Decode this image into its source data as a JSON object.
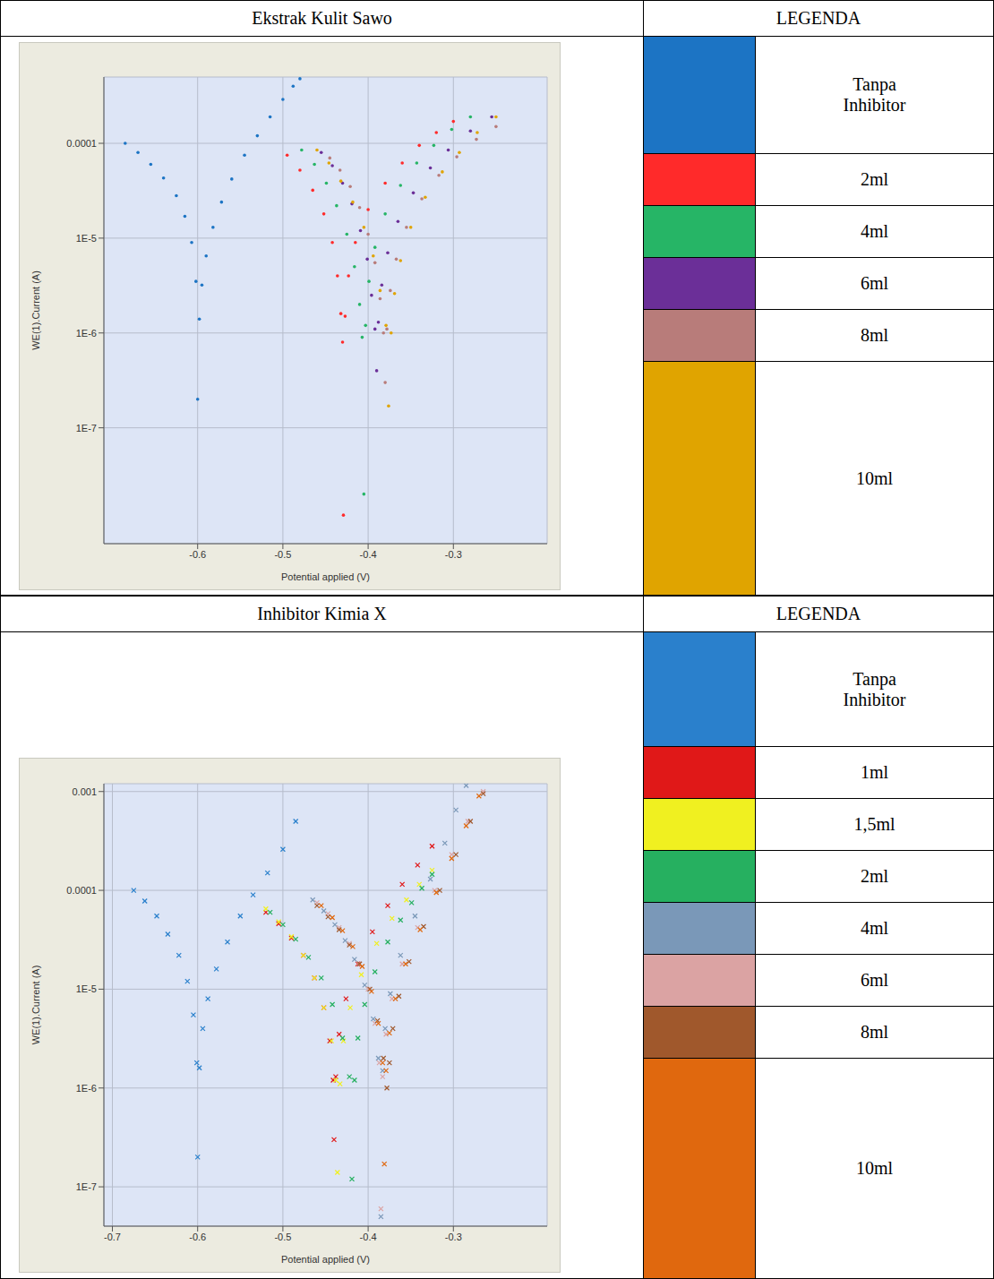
{
  "chart_data": [
    {
      "type": "scatter",
      "title": "Ekstrak Kulit Sawo",
      "legend_title": "LEGENDA",
      "x_label": "Potential applied (V)",
      "y_label": "WE(1).Current (A)",
      "log": "y",
      "grid": true,
      "legend": "right",
      "marker": "circle",
      "xlim": [
        -0.71,
        -0.19
      ],
      "xticks": [
        -0.6,
        -0.5,
        -0.4,
        -0.3
      ],
      "ylim": [
        6e-09,
        0.0005
      ],
      "yticks": [
        {
          "value": 1e-07,
          "label": "1E-7"
        },
        {
          "value": 1e-06,
          "label": "1E-6"
        },
        {
          "value": 1e-05,
          "label": "1E-5"
        },
        {
          "value": 0.0001,
          "label": "0.0001"
        }
      ],
      "series": [
        {
          "name": "Tanpa Inhibitor",
          "color": "#1c74c4",
          "x": [
            -0.685,
            -0.67,
            -0.655,
            -0.64,
            -0.625,
            -0.615,
            -0.607,
            -0.602,
            -0.6,
            -0.598,
            -0.595,
            -0.59,
            -0.582,
            -0.572,
            -0.56,
            -0.545,
            -0.53,
            -0.515,
            -0.5,
            -0.488,
            -0.48
          ],
          "values": [
            0.0001,
            8e-05,
            6e-05,
            4.3e-05,
            2.8e-05,
            1.7e-05,
            9e-06,
            3.5e-06,
            2e-07,
            1.4e-06,
            3.2e-06,
            6.5e-06,
            1.3e-05,
            2.4e-05,
            4.2e-05,
            7.5e-05,
            0.00012,
            0.00019,
            0.00029,
            0.0004,
            0.00048
          ]
        },
        {
          "name": "2ml",
          "color": "#ff2a2a",
          "x": [
            -0.495,
            -0.48,
            -0.465,
            -0.452,
            -0.442,
            -0.436,
            -0.432,
            -0.43,
            -0.429,
            -0.427,
            -0.423,
            -0.415,
            -0.4,
            -0.38,
            -0.36,
            -0.34,
            -0.32,
            -0.3
          ],
          "values": [
            7.5e-05,
            5.2e-05,
            3.2e-05,
            1.8e-05,
            9e-06,
            4e-06,
            1.6e-06,
            8e-07,
            1.2e-08,
            1.5e-06,
            4e-06,
            9e-06,
            2e-05,
            3.8e-05,
            6.2e-05,
            9.5e-05,
            0.00013,
            0.00017
          ]
        },
        {
          "name": "4ml",
          "color": "#26b566",
          "x": [
            -0.478,
            -0.463,
            -0.449,
            -0.437,
            -0.425,
            -0.416,
            -0.41,
            -0.407,
            -0.405,
            -0.403,
            -0.399,
            -0.392,
            -0.38,
            -0.362,
            -0.343,
            -0.323,
            -0.302,
            -0.28
          ],
          "values": [
            8.5e-05,
            6e-05,
            3.8e-05,
            2.2e-05,
            1.1e-05,
            5e-06,
            2e-06,
            9e-07,
            2e-08,
            1.2e-06,
            3.5e-06,
            8e-06,
            1.8e-05,
            3.6e-05,
            6.2e-05,
            9.5e-05,
            0.00014,
            0.00019
          ]
        },
        {
          "name": "6ml",
          "color": "#6b2f98",
          "x": [
            -0.455,
            -0.442,
            -0.43,
            -0.419,
            -0.409,
            -0.401,
            -0.396,
            -0.392,
            -0.39,
            -0.388,
            -0.384,
            -0.377,
            -0.365,
            -0.347,
            -0.327,
            -0.306,
            -0.28,
            -0.255
          ],
          "values": [
            8e-05,
            5.8e-05,
            3.8e-05,
            2.3e-05,
            1.2e-05,
            6e-06,
            2.5e-06,
            1.1e-06,
            4e-07,
            1.3e-06,
            3.2e-06,
            7e-06,
            1.5e-05,
            3e-05,
            5.5e-05,
            8.5e-05,
            0.000135,
            0.00019
          ]
        },
        {
          "name": "8ml",
          "color": "#b87c7a",
          "x": [
            -0.445,
            -0.433,
            -0.421,
            -0.41,
            -0.4,
            -0.392,
            -0.386,
            -0.382,
            -0.38,
            -0.378,
            -0.374,
            -0.367,
            -0.355,
            -0.337,
            -0.317,
            -0.296,
            -0.273,
            -0.25
          ],
          "values": [
            7e-05,
            5.2e-05,
            3.5e-05,
            2.1e-05,
            1.1e-05,
            5.5e-06,
            2.3e-06,
            1e-06,
            3e-07,
            1.1e-06,
            2.8e-06,
            6e-06,
            1.3e-05,
            2.6e-05,
            4.6e-05,
            7.2e-05,
            0.00011,
            0.00015
          ]
        },
        {
          "name": "10ml",
          "color": "#e0a400",
          "x": [
            -0.46,
            -0.446,
            -0.432,
            -0.418,
            -0.405,
            -0.394,
            -0.386,
            -0.379,
            -0.376,
            -0.373,
            -0.369,
            -0.362,
            -0.35,
            -0.333,
            -0.313,
            -0.293,
            -0.272,
            -0.25
          ],
          "values": [
            8.5e-05,
            6.2e-05,
            4e-05,
            2.4e-05,
            1.3e-05,
            6.5e-06,
            2.8e-06,
            1.2e-06,
            1.7e-07,
            1e-06,
            2.6e-06,
            5.8e-06,
            1.3e-05,
            2.7e-05,
            5e-05,
            8e-05,
            0.00013,
            0.00019
          ]
        }
      ]
    },
    {
      "type": "scatter",
      "title": "Inhibitor Kimia X",
      "legend_title": "LEGENDA",
      "x_label": "Potential applied (V)",
      "y_label": "WE(1).Current (A)",
      "log": "y",
      "grid": true,
      "legend": "right",
      "marker": "x",
      "xlim": [
        -0.71,
        -0.19
      ],
      "xticks": [
        -0.7,
        -0.6,
        -0.5,
        -0.4,
        -0.3
      ],
      "ylim": [
        4e-08,
        0.0012
      ],
      "yticks": [
        {
          "value": 1e-07,
          "label": "1E-7"
        },
        {
          "value": 1e-06,
          "label": "1E-6"
        },
        {
          "value": 1e-05,
          "label": "1E-5"
        },
        {
          "value": 0.0001,
          "label": "0.0001"
        },
        {
          "value": 0.001,
          "label": "0.001"
        }
      ],
      "series": [
        {
          "name": "Tanpa Inhibitor",
          "color": "#2a80cc",
          "x": [
            -0.675,
            -0.662,
            -0.648,
            -0.635,
            -0.622,
            -0.612,
            -0.605,
            -0.601,
            -0.6,
            -0.598,
            -0.594,
            -0.588,
            -0.578,
            -0.565,
            -0.55,
            -0.535,
            -0.518,
            -0.5,
            -0.485
          ],
          "values": [
            0.0001,
            7.8e-05,
            5.5e-05,
            3.6e-05,
            2.2e-05,
            1.2e-05,
            5.5e-06,
            1.8e-06,
            2e-07,
            1.6e-06,
            4e-06,
            8e-06,
            1.6e-05,
            3e-05,
            5.5e-05,
            9e-05,
            0.00015,
            0.00026,
            0.0005
          ]
        },
        {
          "name": "1ml",
          "color": "#e01818",
          "x": [
            -0.52,
            -0.505,
            -0.49,
            -0.476,
            -0.463,
            -0.452,
            -0.445,
            -0.441,
            -0.44,
            -0.438,
            -0.434,
            -0.426,
            -0.412,
            -0.395,
            -0.377,
            -0.36,
            -0.342,
            -0.325
          ],
          "values": [
            6e-05,
            4.6e-05,
            3.3e-05,
            2.2e-05,
            1.3e-05,
            6.5e-06,
            3e-06,
            1.2e-06,
            3e-07,
            1.3e-06,
            3.5e-06,
            8e-06,
            1.8e-05,
            3.8e-05,
            7e-05,
            0.000115,
            0.00018,
            0.00028
          ]
        },
        {
          "name": "1,5ml",
          "color": "#f0f020",
          "x": [
            -0.52,
            -0.505,
            -0.49,
            -0.476,
            -0.463,
            -0.452,
            -0.443,
            -0.438,
            -0.436,
            -0.433,
            -0.429,
            -0.421,
            -0.408,
            -0.39,
            -0.372,
            -0.355,
            -0.34,
            -0.325
          ],
          "values": [
            6.5e-05,
            4.8e-05,
            3.4e-05,
            2.2e-05,
            1.3e-05,
            6.5e-06,
            3e-06,
            1.2e-06,
            1.4e-07,
            1.1e-06,
            3e-06,
            6.5e-06,
            1.4e-05,
            2.9e-05,
            5.2e-05,
            8e-05,
            0.000115,
            0.00016
          ]
        },
        {
          "name": "2ml",
          "color": "#26b060",
          "x": [
            -0.515,
            -0.5,
            -0.485,
            -0.47,
            -0.455,
            -0.442,
            -0.43,
            -0.422,
            -0.419,
            -0.416,
            -0.412,
            -0.404,
            -0.392,
            -0.377,
            -0.362,
            -0.349,
            -0.337,
            -0.325
          ],
          "values": [
            6e-05,
            4.5e-05,
            3.2e-05,
            2.1e-05,
            1.3e-05,
            7e-06,
            3.2e-06,
            1.3e-06,
            1.2e-07,
            1.2e-06,
            3.2e-06,
            7e-06,
            1.5e-05,
            3e-05,
            5e-05,
            7.5e-05,
            0.000105,
            0.000145
          ]
        },
        {
          "name": "4ml",
          "color": "#7a98b8",
          "x": [
            -0.465,
            -0.452,
            -0.439,
            -0.427,
            -0.416,
            -0.404,
            -0.394,
            -0.388,
            -0.385,
            -0.383,
            -0.38,
            -0.374,
            -0.362,
            -0.345,
            -0.327,
            -0.31,
            -0.297,
            -0.285
          ],
          "values": [
            8e-05,
            6.2e-05,
            4.5e-05,
            3.1e-05,
            2e-05,
            1.1e-05,
            5e-06,
            2e-06,
            5e-08,
            1.5e-06,
            4e-06,
            9e-06,
            2.2e-05,
            5.5e-05,
            0.00013,
            0.0003,
            0.00065,
            0.00115
          ]
        },
        {
          "name": "6ml",
          "color": "#dba3a3",
          "x": [
            -0.46,
            -0.447,
            -0.434,
            -0.422,
            -0.411,
            -0.4,
            -0.392,
            -0.387,
            -0.385,
            -0.383,
            -0.379,
            -0.372,
            -0.36,
            -0.342,
            -0.322,
            -0.302,
            -0.283,
            -0.265
          ],
          "values": [
            7.5e-05,
            5.8e-05,
            4.2e-05,
            2.9e-05,
            1.8e-05,
            1e-05,
            4.5e-06,
            1.8e-06,
            6e-08,
            1.3e-06,
            3.5e-06,
            8e-06,
            1.8e-05,
            4.2e-05,
            0.0001,
            0.00023,
            0.0005,
            0.001
          ]
        },
        {
          "name": "8ml",
          "color": "#a0582c",
          "x": [
            -0.46,
            -0.447,
            -0.434,
            -0.422,
            -0.41,
            -0.398,
            -0.389,
            -0.382,
            -0.378,
            -0.375,
            -0.371,
            -0.364,
            -0.352,
            -0.335,
            -0.316,
            -0.297,
            -0.28,
            -0.265
          ],
          "values": [
            7e-05,
            5.4e-05,
            4e-05,
            2.8e-05,
            1.8e-05,
            1e-05,
            4.8e-06,
            2e-06,
            1e-06,
            1.8e-06,
            4e-06,
            8.5e-06,
            1.9e-05,
            4.3e-05,
            0.0001,
            0.00023,
            0.0005,
            0.00095
          ]
        },
        {
          "name": "10ml",
          "color": "#e0680e",
          "x": [
            -0.455,
            -0.442,
            -0.43,
            -0.418,
            -0.407,
            -0.396,
            -0.388,
            -0.383,
            -0.381,
            -0.379,
            -0.375,
            -0.368,
            -0.356,
            -0.339,
            -0.32,
            -0.302,
            -0.285,
            -0.27
          ],
          "values": [
            7e-05,
            5.3e-05,
            3.9e-05,
            2.7e-05,
            1.7e-05,
            9.5e-06,
            4.5e-06,
            1.8e-06,
            1.7e-07,
            1.5e-06,
            3.6e-06,
            8e-06,
            1.8e-05,
            4e-05,
            9.5e-05,
            0.00021,
            0.00045,
            0.0009
          ]
        }
      ]
    }
  ]
}
